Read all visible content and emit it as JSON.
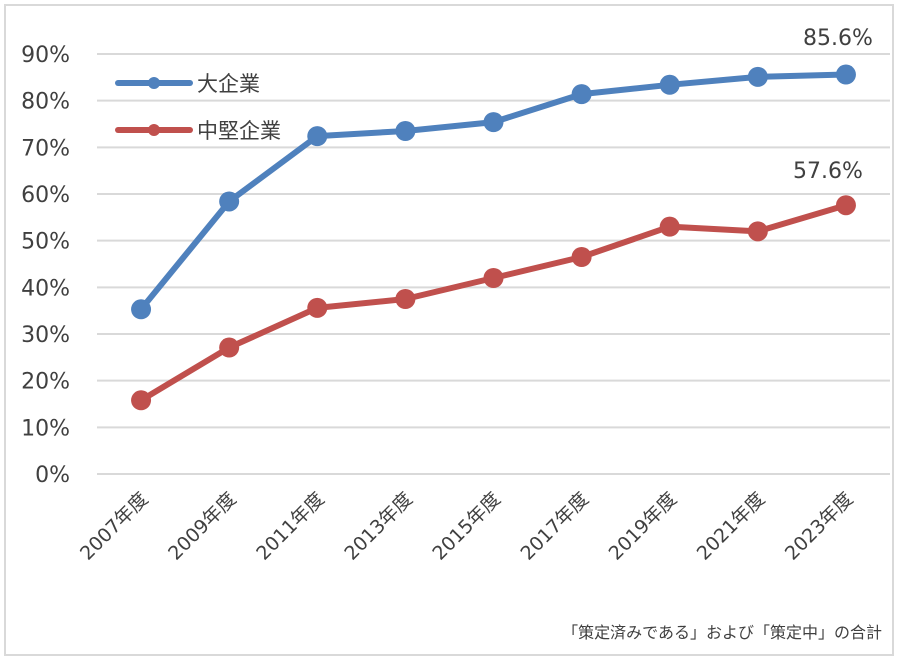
{
  "chart_data": {
    "type": "line",
    "categories": [
      "2007年度",
      "2009年度",
      "2011年度",
      "2013年度",
      "2015年度",
      "2017年度",
      "2019年度",
      "2021年度",
      "2023年度"
    ],
    "series": [
      {
        "name": "大企業",
        "color": "#4f81bd",
        "values": [
          35.3,
          58.4,
          72.4,
          73.5,
          75.4,
          81.4,
          83.4,
          85.1,
          85.6
        ]
      },
      {
        "name": "中堅企業",
        "color": "#c0504d",
        "values": [
          15.8,
          27.1,
          35.6,
          37.5,
          42.0,
          46.5,
          53.0,
          52.0,
          57.6
        ]
      }
    ],
    "data_labels": [
      "85.6%",
      "57.6%"
    ],
    "ylim": [
      0,
      90
    ],
    "yticks": [
      "0%",
      "10%",
      "20%",
      "30%",
      "40%",
      "50%",
      "60%",
      "70%",
      "80%",
      "90%"
    ],
    "grid": true,
    "legend_position": "top-left",
    "footnote": "「策定済みである」および「策定中」の合計",
    "title": "",
    "xlabel": "",
    "ylabel": ""
  }
}
